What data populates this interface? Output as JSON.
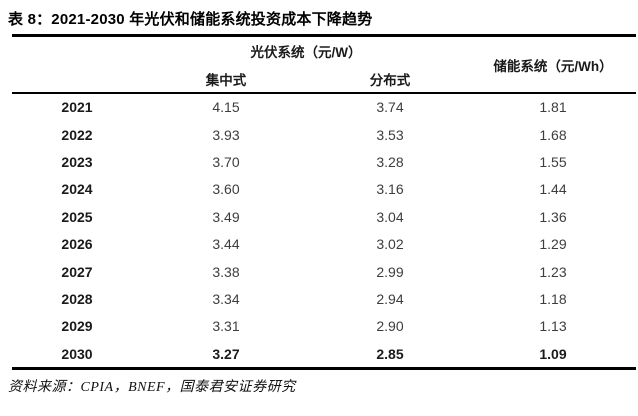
{
  "title": "表 8：2021-2030 年光伏和储能系统投资成本下降趋势",
  "table": {
    "group_headers": {
      "pv": "光伏系统（元/W）",
      "storage": "储能系统（元/Wh）"
    },
    "sub_headers": {
      "centralized": "集中式",
      "distributed": "分布式"
    },
    "rows": [
      {
        "year": "2021",
        "centralized": "4.15",
        "distributed": "3.74",
        "storage": "1.81"
      },
      {
        "year": "2022",
        "centralized": "3.93",
        "distributed": "3.53",
        "storage": "1.68"
      },
      {
        "year": "2023",
        "centralized": "3.70",
        "distributed": "3.28",
        "storage": "1.55"
      },
      {
        "year": "2024",
        "centralized": "3.60",
        "distributed": "3.16",
        "storage": "1.44"
      },
      {
        "year": "2025",
        "centralized": "3.49",
        "distributed": "3.04",
        "storage": "1.36"
      },
      {
        "year": "2026",
        "centralized": "3.44",
        "distributed": "3.02",
        "storage": "1.29"
      },
      {
        "year": "2027",
        "centralized": "3.38",
        "distributed": "2.99",
        "storage": "1.23"
      },
      {
        "year": "2028",
        "centralized": "3.34",
        "distributed": "2.94",
        "storage": "1.18"
      },
      {
        "year": "2029",
        "centralized": "3.31",
        "distributed": "2.90",
        "storage": "1.13"
      },
      {
        "year": "2030",
        "centralized": "3.27",
        "distributed": "2.85",
        "storage": "1.09"
      }
    ]
  },
  "footer": "资料来源：CPIA，BNEF，国泰君安证券研究",
  "colors": {
    "rule": "#000000",
    "title_text": "#000000",
    "value_text": "#3d3d3d"
  }
}
